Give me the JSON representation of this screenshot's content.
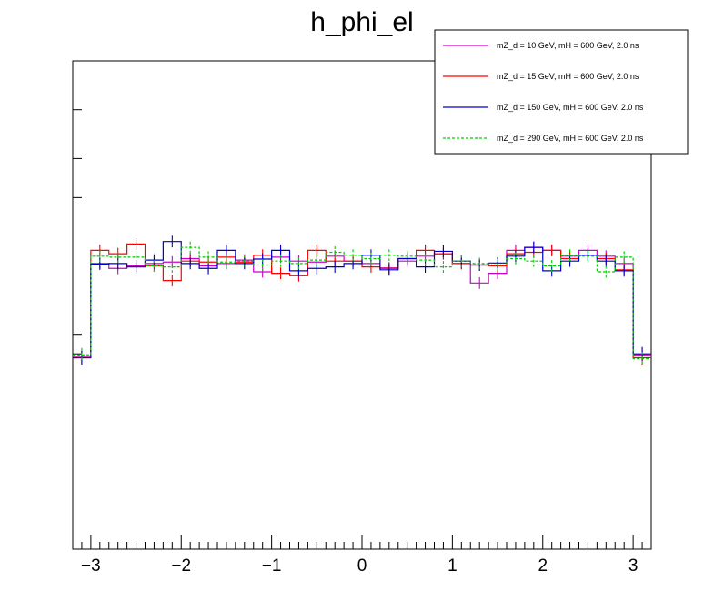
{
  "chart_data": {
    "type": "line",
    "title": "h_phi_el",
    "xlabel": "",
    "ylabel": "",
    "xlim": [
      -3.2,
      3.2
    ],
    "ylim": [
      0,
      1.0
    ],
    "x_ticks": [
      -3,
      -2,
      -1,
      0,
      1,
      2,
      3
    ],
    "x_tick_labels": [
      "−3",
      "−2",
      "−1",
      "0",
      "1",
      "2",
      "3"
    ],
    "y_ticks": [
      0.4,
      0.44,
      0.72,
      0.8,
      0.9
    ],
    "bin_edges": [
      -3.2,
      -3.0,
      -2.8,
      -2.6,
      -2.4,
      -2.2,
      -2.0,
      -1.8,
      -1.6,
      -1.4,
      -1.2,
      -1.0,
      -0.8,
      -0.6,
      -0.4,
      -0.2,
      0.0,
      0.2,
      0.4,
      0.6,
      0.8,
      1.0,
      1.2,
      1.4,
      1.6,
      1.8,
      2.0,
      2.2,
      2.4,
      2.6,
      2.8,
      3.0,
      3.2
    ],
    "legend_position": "top-right",
    "series": [
      {
        "name": "mZ_d = 10 GeV, mH = 600 GeV, 2.0 ns",
        "color": "#cc00cc",
        "dashed": false,
        "values": [
          0.395,
          0.585,
          0.575,
          0.58,
          0.585,
          0.588,
          0.595,
          0.58,
          0.585,
          0.592,
          0.568,
          0.598,
          0.59,
          0.588,
          0.6,
          0.59,
          0.585,
          0.576,
          0.59,
          0.6,
          0.605,
          0.585,
          0.545,
          0.565,
          0.612,
          0.618,
          0.612,
          0.6,
          0.612,
          0.6,
          0.585,
          0.398
        ],
        "errors": [
          0.014,
          0.012,
          0.012,
          0.012,
          0.012,
          0.012,
          0.012,
          0.012,
          0.012,
          0.012,
          0.012,
          0.012,
          0.012,
          0.012,
          0.012,
          0.012,
          0.012,
          0.012,
          0.012,
          0.012,
          0.012,
          0.012,
          0.012,
          0.012,
          0.012,
          0.012,
          0.012,
          0.012,
          0.012,
          0.012,
          0.012,
          0.014
        ]
      },
      {
        "name": "mZ_d = 15 GeV, mH = 600 GeV, 2.0 ns",
        "color": "#ff0000",
        "dashed": false,
        "values": [
          0.392,
          0.612,
          0.605,
          0.625,
          0.58,
          0.55,
          0.59,
          0.588,
          0.598,
          0.588,
          0.602,
          0.565,
          0.56,
          0.612,
          0.59,
          0.59,
          0.578,
          0.575,
          0.595,
          0.612,
          0.605,
          0.585,
          0.582,
          0.58,
          0.605,
          0.608,
          0.612,
          0.595,
          0.602,
          0.595,
          0.572,
          0.392
        ],
        "errors": [
          0.014,
          0.012,
          0.012,
          0.012,
          0.012,
          0.012,
          0.012,
          0.012,
          0.012,
          0.012,
          0.012,
          0.012,
          0.012,
          0.012,
          0.012,
          0.012,
          0.012,
          0.012,
          0.012,
          0.012,
          0.012,
          0.012,
          0.012,
          0.012,
          0.012,
          0.012,
          0.012,
          0.012,
          0.012,
          0.012,
          0.012,
          0.014
        ]
      },
      {
        "name": "mZ_d = 150 GeV, mH = 600 GeV, 2.0 ns",
        "color": "#0000cc",
        "dashed": false,
        "values": [
          0.392,
          0.584,
          0.585,
          0.578,
          0.592,
          0.63,
          0.585,
          0.575,
          0.612,
          0.585,
          0.594,
          0.612,
          0.57,
          0.575,
          0.578,
          0.585,
          0.602,
          0.572,
          0.595,
          0.578,
          0.61,
          0.59,
          0.582,
          0.586,
          0.6,
          0.618,
          0.57,
          0.59,
          0.602,
          0.59,
          0.57,
          0.4
        ],
        "errors": [
          0.014,
          0.012,
          0.012,
          0.012,
          0.012,
          0.012,
          0.012,
          0.012,
          0.012,
          0.012,
          0.012,
          0.012,
          0.012,
          0.012,
          0.012,
          0.012,
          0.012,
          0.012,
          0.012,
          0.012,
          0.012,
          0.012,
          0.012,
          0.012,
          0.012,
          0.012,
          0.012,
          0.012,
          0.012,
          0.012,
          0.012,
          0.014
        ]
      },
      {
        "name": "mZ_d = 290 GeV, mH = 600 GeV, 2.0 ns",
        "color": "#00cc00",
        "dashed": true,
        "values": [
          0.398,
          0.6,
          0.598,
          0.598,
          0.58,
          0.578,
          0.618,
          0.598,
          0.588,
          0.59,
          0.582,
          0.59,
          0.585,
          0.592,
          0.608,
          0.602,
          0.595,
          0.602,
          0.6,
          0.592,
          0.578,
          0.59,
          0.585,
          0.582,
          0.595,
          0.59,
          0.58,
          0.602,
          0.6,
          0.568,
          0.598,
          0.39
        ],
        "errors": [
          0.014,
          0.012,
          0.012,
          0.012,
          0.012,
          0.012,
          0.012,
          0.012,
          0.012,
          0.012,
          0.012,
          0.012,
          0.012,
          0.012,
          0.012,
          0.012,
          0.012,
          0.012,
          0.012,
          0.012,
          0.012,
          0.012,
          0.012,
          0.012,
          0.012,
          0.012,
          0.012,
          0.012,
          0.012,
          0.012,
          0.012,
          0.014
        ]
      }
    ]
  }
}
